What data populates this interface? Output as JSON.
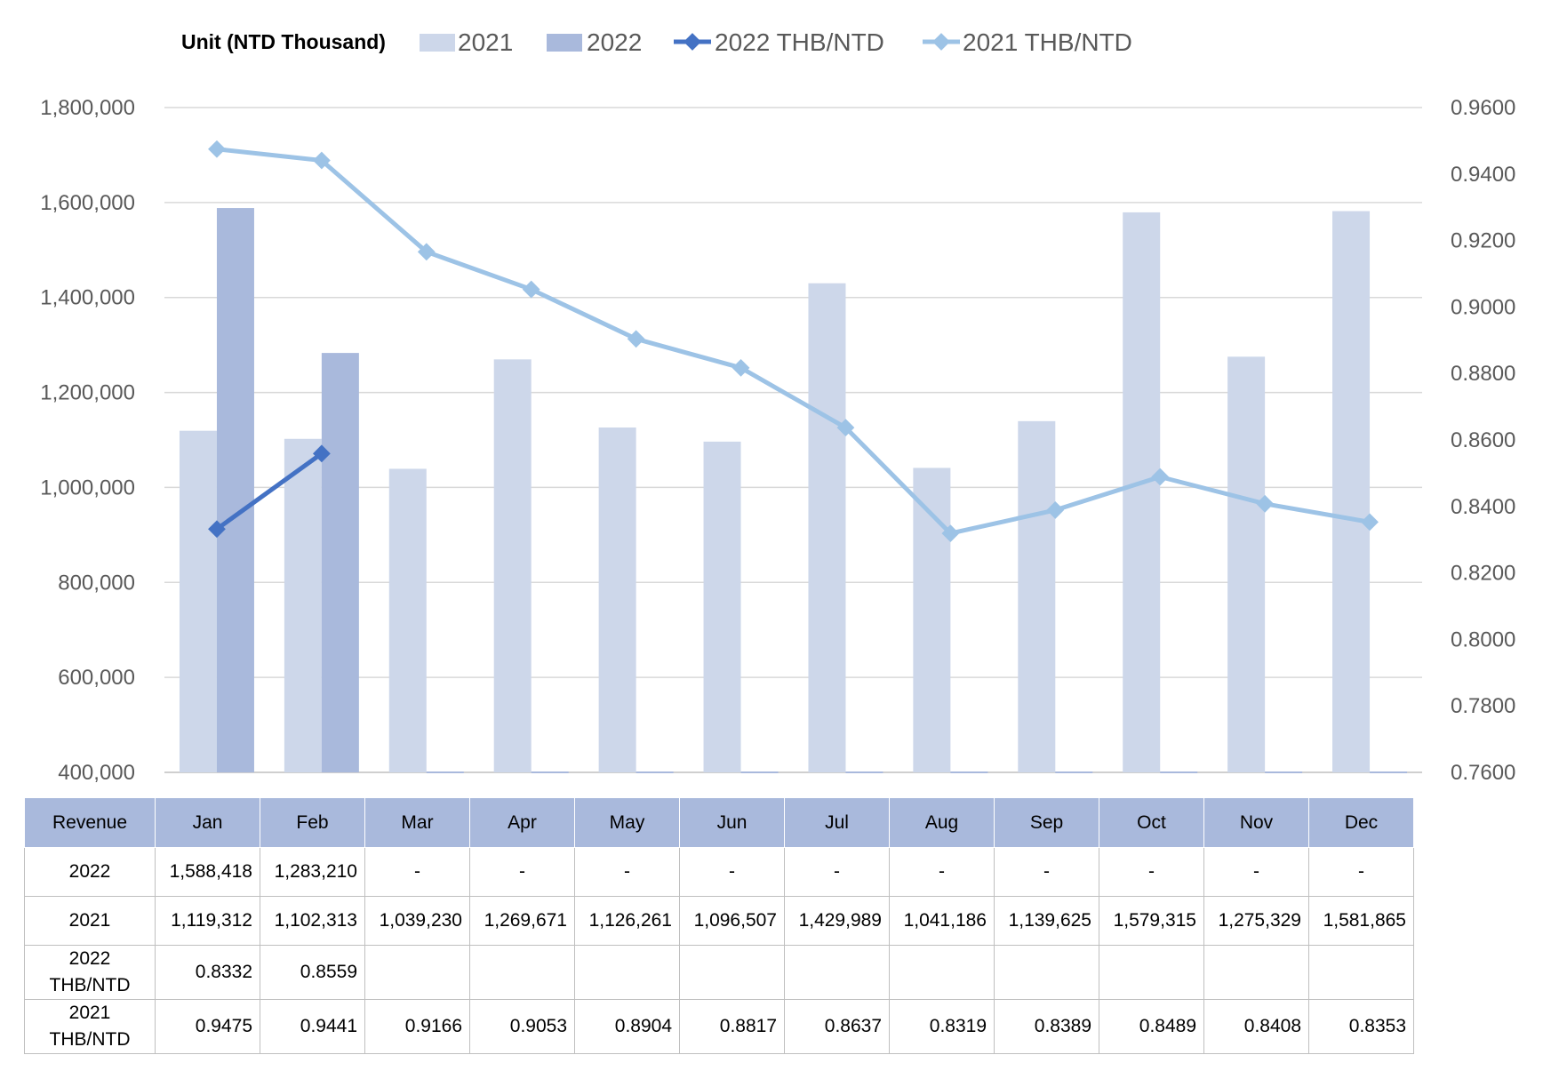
{
  "legend": {
    "unit_label": "Unit (NTD  Thousand)",
    "items": [
      {
        "label": "2021",
        "kind": "bar",
        "color": "#cdd7ea"
      },
      {
        "label": "2022",
        "kind": "bar",
        "color": "#a9b9dc"
      },
      {
        "label": "2022 THB/NTD",
        "kind": "line",
        "color": "#4472c4"
      },
      {
        "label": "2021 THB/NTD",
        "kind": "line",
        "color": "#9dc3e6"
      }
    ]
  },
  "chart_data": {
    "type": "bar",
    "categories": [
      "Jan",
      "Feb",
      "Mar",
      "Apr",
      "May",
      "Jun",
      "Jul",
      "Aug",
      "Sep",
      "Oct",
      "Nov",
      "Dec"
    ],
    "series": [
      {
        "name": "2021",
        "kind": "bar",
        "axis": "left",
        "color": "#cdd7ea",
        "values": [
          1119312,
          1102313,
          1039230,
          1269671,
          1126261,
          1096507,
          1429989,
          1041186,
          1139625,
          1579315,
          1275329,
          1581865
        ]
      },
      {
        "name": "2022",
        "kind": "bar",
        "axis": "left",
        "color": "#a9b9dc",
        "values": [
          1588418,
          1283210,
          null,
          null,
          null,
          null,
          null,
          null,
          null,
          null,
          null,
          null
        ]
      },
      {
        "name": "2022 THB/NTD",
        "kind": "line",
        "axis": "right",
        "color": "#4472c4",
        "values": [
          0.8332,
          0.8559,
          null,
          null,
          null,
          null,
          null,
          null,
          null,
          null,
          null,
          null
        ]
      },
      {
        "name": "2021 THB/NTD",
        "kind": "line",
        "axis": "right",
        "color": "#9dc3e6",
        "values": [
          0.9475,
          0.9441,
          0.9166,
          0.9053,
          0.8904,
          0.8817,
          0.8637,
          0.8319,
          0.8389,
          0.8489,
          0.8408,
          0.8353
        ]
      }
    ],
    "y_left": {
      "min": 400000,
      "max": 1800000,
      "ticks": [
        "1,800,000",
        "1,600,000",
        "1,400,000",
        "1,200,000",
        "1,000,000",
        "800,000",
        "600,000",
        "400,000"
      ]
    },
    "y_right": {
      "min": 0.76,
      "max": 0.96,
      "ticks": [
        "0.9600",
        "0.9400",
        "0.9200",
        "0.9000",
        "0.8800",
        "0.8600",
        "0.8400",
        "0.8200",
        "0.8000",
        "0.7800",
        "0.7600"
      ]
    },
    "grid": true,
    "legend_position": "top"
  },
  "table": {
    "header": [
      "Revenue",
      "Jan",
      "Feb",
      "Mar",
      "Apr",
      "May",
      "Jun",
      "Jul",
      "Aug",
      "Sep",
      "Oct",
      "Nov",
      "Dec"
    ],
    "rows": [
      {
        "label": "2022",
        "cells": [
          "1,588,418",
          "1,283,210",
          "-",
          "-",
          "-",
          "-",
          "-",
          "-",
          "-",
          "-",
          "-",
          "-"
        ]
      },
      {
        "label": "2021",
        "cells": [
          "1,119,312",
          "1,102,313",
          "1,039,230",
          "1,269,671",
          "1,126,261",
          "1,096,507",
          "1,429,989",
          "1,041,186",
          "1,139,625",
          "1,579,315",
          "1,275,329",
          "1,581,865"
        ]
      },
      {
        "label": "2022 THB/NTD",
        "cells": [
          "0.8332",
          "0.8559",
          "",
          "",
          "",
          "",
          "",
          "",
          "",
          "",
          "",
          ""
        ]
      },
      {
        "label": "2021 THB/NTD",
        "cells": [
          "0.9475",
          "0.9441",
          "0.9166",
          "0.9053",
          "0.8904",
          "0.8817",
          "0.8637",
          "0.8319",
          "0.8389",
          "0.8489",
          "0.8408",
          "0.8353"
        ]
      }
    ]
  }
}
